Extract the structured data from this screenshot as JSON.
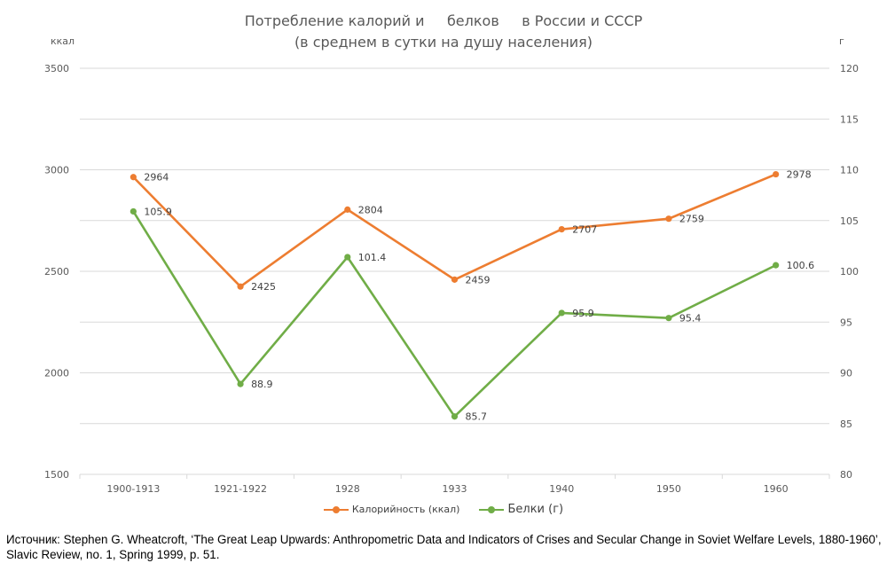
{
  "chart_data": {
    "type": "line",
    "title": "Потребление калорий и     белков     в России и СССР",
    "subtitle": "(в среднем в сутки на душу населения)",
    "categories": [
      "1900-1913",
      "1921-1922",
      "1928",
      "1933",
      "1940",
      "1950",
      "1960"
    ],
    "y_left": {
      "unit": "ккал",
      "ylim": [
        1500,
        3500
      ],
      "ticks": [
        "1500",
        "2000",
        "2500",
        "3000",
        "3500"
      ]
    },
    "y_right": {
      "unit": "г",
      "ylim": [
        80,
        120
      ],
      "ticks": [
        "80",
        "85",
        "90",
        "95",
        "100",
        "105",
        "110",
        "115",
        "120"
      ]
    },
    "series": [
      {
        "name": "Калорийность (ккал)",
        "axis": "left",
        "color": "#ED7D31",
        "values": [
          2964,
          2425,
          2804,
          2459,
          2707,
          2759,
          2978
        ],
        "labels": [
          "2964",
          "2425",
          "2804",
          "2459",
          "2707",
          "2759",
          "2978"
        ]
      },
      {
        "name": "Белки (г)",
        "axis": "right",
        "color": "#70AD47",
        "values": [
          105.9,
          88.9,
          101.4,
          85.7,
          95.9,
          95.4,
          100.6
        ],
        "labels": [
          "105.9",
          "88.9",
          "101.4",
          "85.7",
          "95.9",
          "95.4",
          "100.6"
        ]
      }
    ],
    "grid": true,
    "legend": "bottom"
  },
  "source_text": "Источник: Stephen G. Wheatcroft, ‘The Great Leap Upwards: Anthropometric Data and Indicators of Crises and Secular Change in Soviet Welfare Levels, 1880-1960’, Slavic Review, no. 1, Spring 1999, p. 51."
}
